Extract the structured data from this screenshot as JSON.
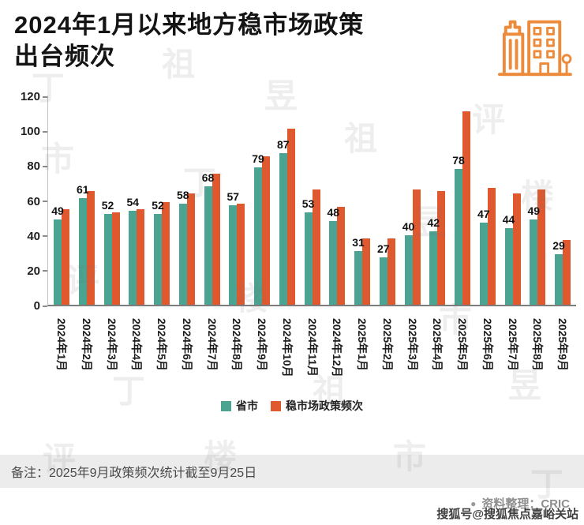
{
  "header": {
    "title_line1": "2024年1月以来地方稳市场政策",
    "title_line2": "出台频次",
    "icon": "buildings-icon",
    "icon_color": "#ec8b3c"
  },
  "chart_data": {
    "type": "bar",
    "title": "2024年1月以来地方稳市场政策出台频次",
    "categories": [
      "2024年1月",
      "2024年2月",
      "2024年3月",
      "2024年4月",
      "2024年5月",
      "2024年6月",
      "2024年7月",
      "2024年8月",
      "2024年9月",
      "2024年10月",
      "2024年11月",
      "2024年12月",
      "2025年1月",
      "2025年2月",
      "2025年3月",
      "2025年4月",
      "2025年5月",
      "2025年6月",
      "2025年7月",
      "2025年8月",
      "2025年9月"
    ],
    "series": [
      {
        "name": "省市",
        "color": "#4ba491",
        "values": [
          49,
          61,
          52,
          54,
          52,
          58,
          68,
          57,
          79,
          87,
          53,
          48,
          31,
          27,
          40,
          42,
          78,
          47,
          44,
          49,
          29
        ],
        "data_labels": true
      },
      {
        "name": "稳市场政策频次",
        "color": "#e0592e",
        "values": [
          55,
          65,
          53,
          55,
          59,
          64,
          75,
          58,
          85,
          101,
          66,
          56,
          38,
          38,
          66,
          65,
          111,
          67,
          64,
          66,
          37
        ],
        "data_labels": false
      }
    ],
    "ylim": [
      0,
      120
    ],
    "yticks": [
      0,
      20,
      40,
      60,
      80,
      100,
      120
    ],
    "xlabel": "",
    "ylabel": "",
    "grid": false,
    "legend_position": "bottom"
  },
  "footer": {
    "note": "备注：2025年9月政策频次统计截至9月25日",
    "source_bullet": "●",
    "source_label": "资料整理：CRIC",
    "sohu_watermark": "搜狐号@搜狐焦点嘉峪关站"
  },
  "watermark": {
    "text": "丁祖昱评楼市",
    "chars": [
      "丁",
      "祖",
      "昱",
      "评",
      "楼",
      "市"
    ]
  }
}
